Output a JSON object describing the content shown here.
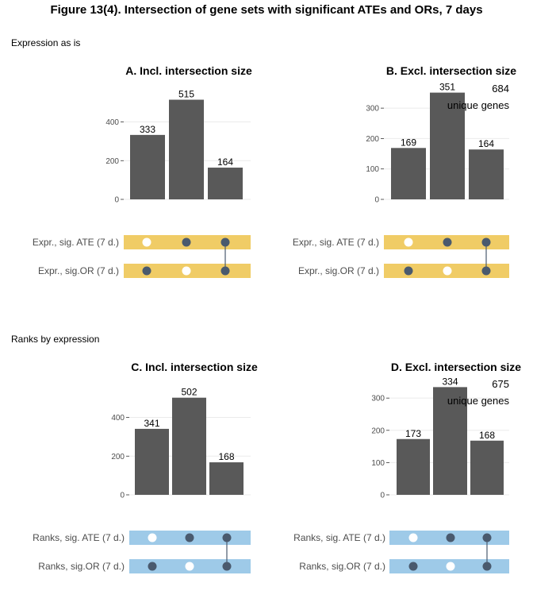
{
  "figure_title": "Figure 13(4). Intersection of gene sets with significant ATEs and ORs, 7 days",
  "sections": [
    {
      "label": "Expression as is"
    },
    {
      "label": "Ranks by expression"
    }
  ],
  "colors": {
    "bar": "#595959",
    "grid": "#ebebeb",
    "dot_filled": "#4a5a6e",
    "dot_empty": "#ffffff",
    "band_expression": "#f0cc66",
    "band_ranks": "#9ecae8"
  },
  "chart_data": [
    {
      "panel": "A",
      "type": "bar",
      "title": "A. Incl. intersection size",
      "values": [
        333,
        515,
        164
      ],
      "ylim": [
        0,
        550
      ],
      "yticks": [
        0,
        200,
        400
      ],
      "grid": true,
      "sets": [
        "Expr., sig. ATE (7 d.)",
        "Expr., sig.OR (7 d.)"
      ],
      "matrix": [
        [
          false,
          true,
          true
        ],
        [
          true,
          false,
          true
        ]
      ]
    },
    {
      "panel": "B",
      "type": "bar",
      "title": "B. Excl. intersection size",
      "values": [
        169,
        351,
        164
      ],
      "ylim": [
        0,
        350
      ],
      "yticks": [
        0,
        100,
        200,
        300
      ],
      "grid": true,
      "annotation_total": "684",
      "annotation_text": "unique genes",
      "sets": [
        "Expr., sig. ATE (7 d.)",
        "Expr., sig.OR (7 d.)"
      ],
      "matrix": [
        [
          false,
          true,
          true
        ],
        [
          true,
          false,
          true
        ]
      ]
    },
    {
      "panel": "C",
      "type": "bar",
      "title": "C. Incl. intersection size",
      "values": [
        341,
        502,
        168
      ],
      "ylim": [
        0,
        550
      ],
      "yticks": [
        0,
        200,
        400
      ],
      "grid": true,
      "sets": [
        "Ranks, sig. ATE (7 d.)",
        "Ranks, sig.OR (7 d.)"
      ],
      "matrix": [
        [
          false,
          true,
          true
        ],
        [
          true,
          false,
          true
        ]
      ]
    },
    {
      "panel": "D",
      "type": "bar",
      "title": "D. Excl. intersection size",
      "values": [
        173,
        334,
        168
      ],
      "ylim": [
        0,
        330
      ],
      "yticks": [
        0,
        100,
        200,
        300
      ],
      "grid": true,
      "annotation_total": "675",
      "annotation_text": "unique genes",
      "sets": [
        "Ranks, sig. ATE (7 d.)",
        "Ranks, sig.OR (7 d.)"
      ],
      "matrix": [
        [
          false,
          true,
          true
        ],
        [
          true,
          false,
          true
        ]
      ]
    }
  ]
}
